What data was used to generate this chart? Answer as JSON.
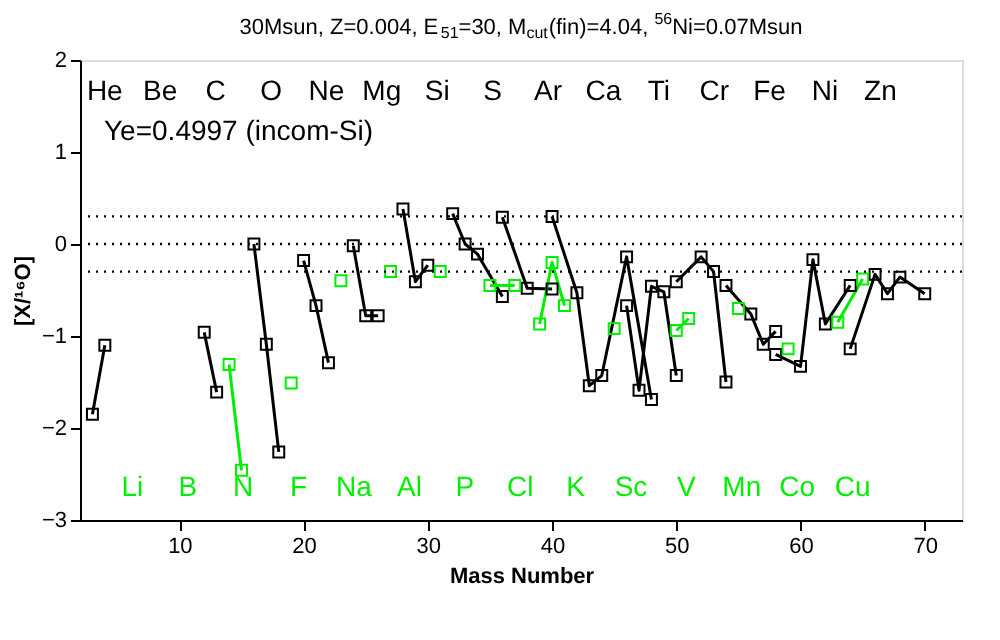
{
  "chart_data": {
    "type": "line",
    "title": "30Msun, Z=0.004, E$_{51}$=30, M$_{cut}$(fin)=4.04, $^{56}$Ni=0.07Msun",
    "xlabel": "Mass Number",
    "ylabel": "[X/¹⁶O]",
    "xlim": [
      2,
      73
    ],
    "xticks": [
      10,
      20,
      30,
      40,
      50,
      60,
      70
    ],
    "ylim": [
      -3,
      2
    ],
    "yticks": [
      -3,
      -2,
      -1,
      0,
      1,
      2
    ],
    "marker": "square",
    "line_style": "solid",
    "grid": false,
    "series": [
      {
        "color": "#000000",
        "x": [
          3,
          4,
          null,
          12,
          13,
          null,
          16,
          17,
          18,
          null,
          20,
          21,
          22,
          null,
          24,
          25,
          26,
          null,
          28,
          29,
          30,
          null,
          32,
          33,
          34,
          36,
          null,
          36,
          38,
          40,
          null,
          40,
          42,
          43,
          44,
          46,
          48,
          null,
          46,
          47,
          48,
          49,
          50,
          null,
          50,
          52,
          53,
          54,
          null,
          54,
          56,
          57,
          58,
          null,
          58,
          60,
          61,
          62,
          64,
          null,
          64,
          66,
          67,
          68,
          70
        ],
        "values": [
          -1.85,
          -1.1,
          null,
          -0.96,
          -1.61,
          null,
          0.0,
          -1.09,
          -2.26,
          null,
          -0.18,
          -0.67,
          -1.29,
          null,
          -0.02,
          -0.78,
          -0.78,
          null,
          0.38,
          -0.41,
          -0.23,
          null,
          0.33,
          0.0,
          -0.11,
          -0.57,
          null,
          0.29,
          -0.48,
          -0.49,
          null,
          0.3,
          -0.53,
          -1.54,
          -1.43,
          -0.14,
          -1.69,
          null,
          -0.67,
          -1.59,
          -0.46,
          -0.52,
          -1.43,
          null,
          -0.41,
          -0.14,
          -0.3,
          -1.5,
          null,
          -0.45,
          -0.76,
          -1.09,
          -0.95,
          null,
          -1.2,
          -1.33,
          -0.17,
          -0.87,
          -0.45,
          null,
          -1.14,
          -0.33,
          -0.54,
          -0.36,
          -0.54
        ]
      },
      {
        "color": "#00ee00",
        "x": [
          14,
          15,
          null,
          19,
          null,
          23,
          null,
          27,
          null,
          31,
          null,
          35,
          37,
          null,
          39,
          40,
          41,
          null,
          45,
          null,
          50,
          51,
          null,
          55,
          null,
          59,
          null,
          63,
          65
        ],
        "values": [
          -1.31,
          -2.46,
          null,
          -1.51,
          null,
          -0.4,
          null,
          -0.3,
          null,
          -0.3,
          null,
          -0.45,
          -0.45,
          null,
          -0.87,
          -0.2,
          -0.67,
          null,
          -0.92,
          null,
          -0.94,
          -0.81,
          null,
          -0.7,
          null,
          -1.14,
          null,
          -0.85,
          -0.38
        ]
      }
    ],
    "ref_lines": [
      {
        "axis": "y",
        "value": 0.3,
        "line_style": "dotted"
      },
      {
        "axis": "y",
        "value": 0,
        "line_style": "dotted"
      },
      {
        "axis": "y",
        "value": -0.3,
        "line_style": "dotted"
      }
    ],
    "annotations": [
      "Ye=0.4997 (incom-Si)",
      "He Be C O Ne Mg Si S Ar Ca Ti Cr Fe Ni Zn",
      "Li B N F Na Al P Cl K Sc V Mn Co Cu"
    ]
  }
}
